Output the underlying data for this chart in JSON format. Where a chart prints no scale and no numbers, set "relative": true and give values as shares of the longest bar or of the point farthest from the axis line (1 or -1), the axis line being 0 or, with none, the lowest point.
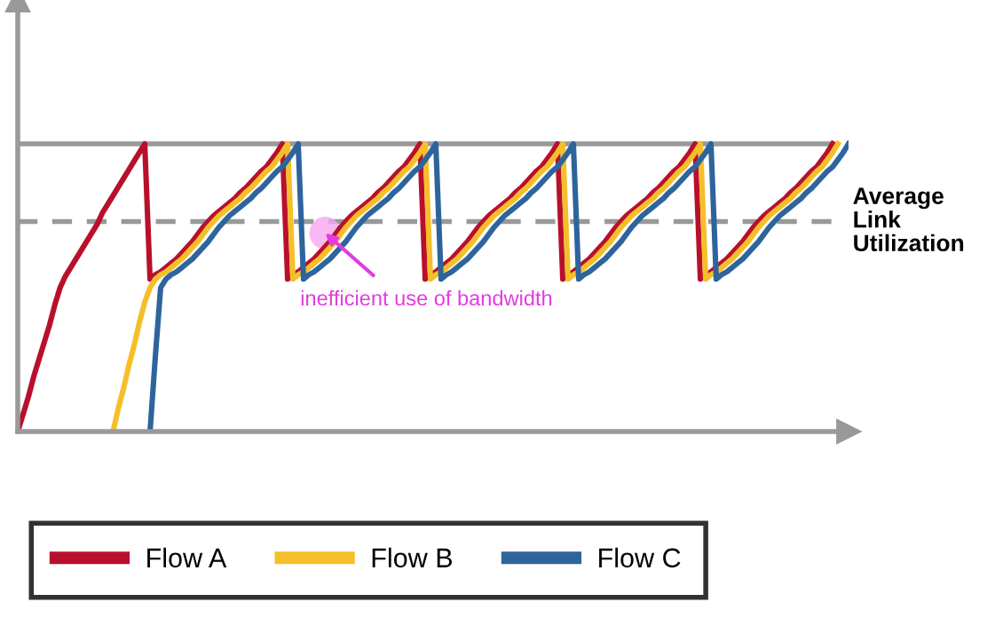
{
  "chart_data": {
    "type": "line",
    "relative": true,
    "legend": "bottom left",
    "line_style": "solid",
    "marker": "none",
    "categories": [
      null,
      null,
      null,
      null,
      null,
      null,
      null,
      null,
      null,
      null,
      null,
      null,
      null,
      null,
      null,
      null,
      null,
      null,
      null,
      null,
      null,
      null,
      null,
      null,
      null,
      null,
      null,
      null,
      null,
      null,
      null,
      null,
      null,
      null,
      null,
      null,
      null,
      null,
      null,
      null,
      null,
      null,
      null,
      null,
      null,
      null,
      null,
      null,
      null,
      null,
      null,
      null,
      null,
      null,
      null,
      null,
      null,
      null,
      null,
      null,
      null,
      null,
      null,
      null,
      null,
      null,
      null,
      null,
      null,
      null,
      null,
      null,
      null,
      null,
      null,
      null,
      null,
      null,
      null,
      null,
      null,
      null,
      null,
      null,
      null,
      null,
      null,
      null,
      null,
      null,
      null,
      null,
      null,
      null,
      null,
      null,
      null,
      null,
      null,
      null,
      null,
      null,
      null,
      null,
      null,
      null,
      null,
      null,
      null,
      null,
      null,
      null,
      null,
      null,
      null,
      null,
      null,
      null,
      null,
      null,
      null,
      null,
      null,
      null,
      null,
      null,
      null,
      null,
      null,
      null,
      null,
      null,
      null,
      null,
      null,
      null,
      null,
      null,
      null,
      null,
      null,
      null,
      null,
      null,
      null,
      null,
      null,
      null,
      null,
      null,
      null,
      null,
      null,
      null,
      null,
      null,
      null,
      null
    ],
    "series": [
      {
        "name": "Flow A",
        "color": "#b8102c",
        "values": [
          0,
          0.06,
          0.12,
          0.19,
          0.25,
          0.31,
          0.37,
          0.44,
          0.5,
          0.54,
          0.57,
          0.6,
          0.63,
          0.66,
          0.69,
          0.72,
          0.76,
          0.79,
          0.82,
          0.85,
          0.88,
          0.91,
          0.94,
          0.97,
          1,
          0.53,
          0.545,
          0.555,
          0.57,
          0.585,
          0.6,
          0.62,
          0.64,
          0.66,
          0.685,
          0.71,
          0.73,
          0.75,
          0.765,
          0.78,
          0.795,
          0.81,
          0.83,
          0.845,
          0.865,
          0.885,
          0.905,
          0.92,
          0.945,
          0.97,
          1,
          0.53,
          0.545,
          0.555,
          0.57,
          0.585,
          0.6,
          0.62,
          0.64,
          0.66,
          0.685,
          0.71,
          0.73,
          0.75,
          0.765,
          0.78,
          0.795,
          0.81,
          0.83,
          0.845,
          0.865,
          0.885,
          0.905,
          0.92,
          0.945,
          0.97,
          1,
          0.53,
          0.545,
          0.555,
          0.57,
          0.585,
          0.6,
          0.62,
          0.64,
          0.66,
          0.685,
          0.71,
          0.73,
          0.75,
          0.765,
          0.78,
          0.795,
          0.81,
          0.83,
          0.845,
          0.865,
          0.885,
          0.905,
          0.92,
          0.945,
          0.97,
          1,
          0.53,
          0.545,
          0.555,
          0.57,
          0.585,
          0.6,
          0.62,
          0.64,
          0.66,
          0.685,
          0.71,
          0.73,
          0.75,
          0.765,
          0.78,
          0.795,
          0.81,
          0.83,
          0.845,
          0.865,
          0.885,
          0.905,
          0.92,
          0.945,
          0.97,
          1,
          0.53,
          0.545,
          0.555,
          0.57,
          0.585,
          0.6,
          0.62,
          0.64,
          0.66,
          0.685,
          0.71,
          0.73,
          0.75,
          0.765,
          0.78,
          0.795,
          0.81,
          0.83,
          0.845,
          0.865,
          0.885,
          0.905,
          0.92,
          0.945,
          0.97,
          1,
          null,
          null,
          null
        ]
      },
      {
        "name": "Flow B",
        "color": "#f5bf2a",
        "values": [
          null,
          null,
          null,
          null,
          null,
          null,
          null,
          null,
          null,
          null,
          null,
          null,
          null,
          null,
          null,
          null,
          null,
          null,
          0,
          0.08,
          0.15,
          0.23,
          0.3,
          0.38,
          0.45,
          0.5,
          0.53,
          0.545,
          0.555,
          0.57,
          0.585,
          0.6,
          0.62,
          0.64,
          0.66,
          0.685,
          0.71,
          0.73,
          0.75,
          0.765,
          0.78,
          0.795,
          0.81,
          0.83,
          0.845,
          0.865,
          0.885,
          0.905,
          0.92,
          0.945,
          0.97,
          1,
          0.53,
          0.545,
          0.555,
          0.57,
          0.585,
          0.6,
          0.62,
          0.64,
          0.66,
          0.685,
          0.71,
          0.73,
          0.75,
          0.765,
          0.78,
          0.795,
          0.81,
          0.83,
          0.845,
          0.865,
          0.885,
          0.905,
          0.92,
          0.945,
          0.97,
          1,
          0.53,
          0.545,
          0.555,
          0.57,
          0.585,
          0.6,
          0.62,
          0.64,
          0.66,
          0.685,
          0.71,
          0.73,
          0.75,
          0.765,
          0.78,
          0.795,
          0.81,
          0.83,
          0.845,
          0.865,
          0.885,
          0.905,
          0.92,
          0.945,
          0.97,
          1,
          0.53,
          0.545,
          0.555,
          0.57,
          0.585,
          0.6,
          0.62,
          0.64,
          0.66,
          0.685,
          0.71,
          0.73,
          0.75,
          0.765,
          0.78,
          0.795,
          0.81,
          0.83,
          0.845,
          0.865,
          0.885,
          0.905,
          0.92,
          0.945,
          0.97,
          1,
          0.53,
          0.545,
          0.555,
          0.57,
          0.585,
          0.6,
          0.62,
          0.64,
          0.66,
          0.685,
          0.71,
          0.73,
          0.75,
          0.765,
          0.78,
          0.795,
          0.81,
          0.83,
          0.845,
          0.865,
          0.885,
          0.905,
          0.92,
          0.945,
          0.97,
          1,
          null,
          null
        ]
      },
      {
        "name": "Flow C",
        "color": "#2e649c",
        "values": [
          null,
          null,
          null,
          null,
          null,
          null,
          null,
          null,
          null,
          null,
          null,
          null,
          null,
          null,
          null,
          null,
          null,
          null,
          null,
          null,
          null,
          null,
          null,
          null,
          null,
          0,
          0.26,
          0.5,
          0.53,
          0.545,
          0.555,
          0.57,
          0.585,
          0.6,
          0.62,
          0.64,
          0.66,
          0.685,
          0.71,
          0.73,
          0.75,
          0.765,
          0.78,
          0.795,
          0.81,
          0.83,
          0.845,
          0.865,
          0.885,
          0.905,
          0.92,
          0.945,
          0.97,
          1,
          0.53,
          0.545,
          0.555,
          0.57,
          0.585,
          0.6,
          0.62,
          0.64,
          0.66,
          0.685,
          0.71,
          0.73,
          0.75,
          0.765,
          0.78,
          0.795,
          0.81,
          0.83,
          0.845,
          0.865,
          0.885,
          0.905,
          0.92,
          0.945,
          0.97,
          1,
          0.53,
          0.545,
          0.555,
          0.57,
          0.585,
          0.6,
          0.62,
          0.64,
          0.66,
          0.685,
          0.71,
          0.73,
          0.75,
          0.765,
          0.78,
          0.795,
          0.81,
          0.83,
          0.845,
          0.865,
          0.885,
          0.905,
          0.92,
          0.945,
          0.97,
          1,
          0.53,
          0.545,
          0.555,
          0.57,
          0.585,
          0.6,
          0.62,
          0.64,
          0.66,
          0.685,
          0.71,
          0.73,
          0.75,
          0.765,
          0.78,
          0.795,
          0.81,
          0.83,
          0.845,
          0.865,
          0.885,
          0.905,
          0.92,
          0.945,
          0.97,
          1,
          0.53,
          0.545,
          0.555,
          0.57,
          0.585,
          0.6,
          0.62,
          0.64,
          0.66,
          0.685,
          0.71,
          0.73,
          0.75,
          0.765,
          0.78,
          0.795,
          0.81,
          0.83,
          0.845,
          0.865,
          0.885,
          0.905,
          0.92,
          0.945,
          0.97,
          1
        ]
      }
    ],
    "ref_lines": [
      {
        "axis": "y",
        "value": 1,
        "color": "#999999",
        "line_style": "solid"
      },
      {
        "axis": "y",
        "value": 0.73,
        "label": "Average Link Utilization",
        "color": "#999999",
        "line_style": "dashed"
      }
    ],
    "annotations": [
      "inefficient use of bandwidth"
    ]
  }
}
